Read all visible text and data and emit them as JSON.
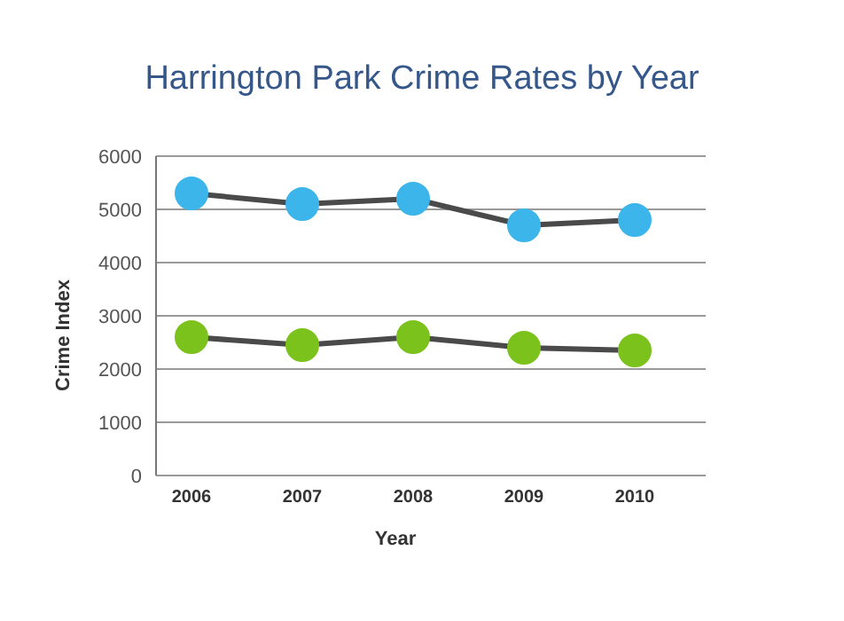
{
  "chart_data": {
    "type": "line",
    "title": "Harrington Park Crime Rates by Year",
    "xlabel": "Year",
    "ylabel": "Crime Index",
    "categories": [
      "2006",
      "2007",
      "2008",
      "2009",
      "2010"
    ],
    "series": [
      {
        "color": "#3bb5ea",
        "values": [
          5300,
          5100,
          5200,
          4700,
          4800
        ]
      },
      {
        "color": "#7cc21d",
        "values": [
          2600,
          2450,
          2600,
          2400,
          2350
        ]
      }
    ],
    "ylim": [
      0,
      6000
    ],
    "yticks": [
      0,
      1000,
      2000,
      3000,
      4000,
      5000,
      6000
    ],
    "grid": "y",
    "legend": false,
    "marker": "circle",
    "line_style": "solid"
  }
}
